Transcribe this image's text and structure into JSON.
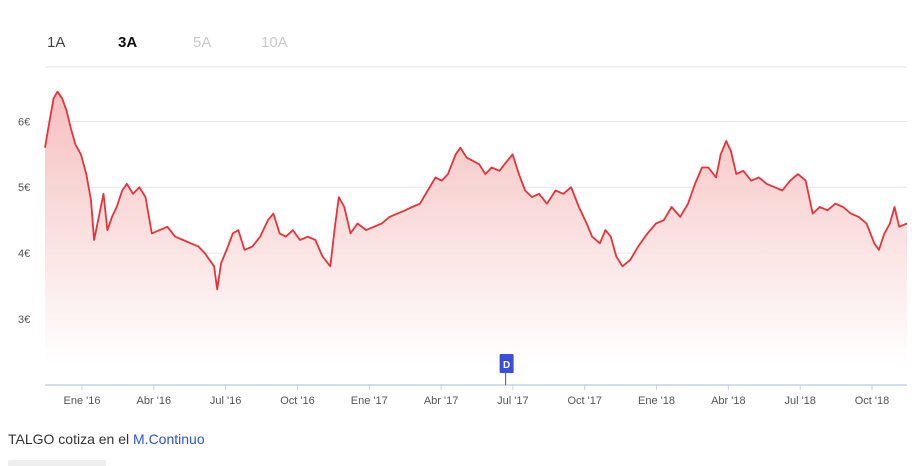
{
  "tabs": [
    {
      "label": "1A",
      "state": "normal"
    },
    {
      "label": "3A",
      "state": "active"
    },
    {
      "label": "5A",
      "state": "disabled"
    },
    {
      "label": "10A",
      "state": "disabled"
    }
  ],
  "footer": {
    "prefix": "TALGO cotiza en el ",
    "market_link": "M.Continuo"
  },
  "colors": {
    "line": "#e8333a",
    "area_top": "#f5b8b8",
    "grid": "#e3e6ee",
    "axis": "#c7d0ea",
    "marker": "#3a4fd9"
  },
  "chart_data": {
    "type": "area",
    "title": "",
    "xlabel": "",
    "ylabel": "",
    "x_ticks": [
      "Ene '16",
      "Abr '16",
      "Jul '16",
      "Oct '16",
      "Ene '17",
      "Abr '17",
      "Jul '17",
      "Oct '17",
      "Ene '18",
      "Abr '18",
      "Jul '18",
      "Oct '18"
    ],
    "y_ticks": [
      "6€",
      "5€",
      "4€",
      "3€"
    ],
    "y_tick_values": [
      6,
      5,
      4,
      3
    ],
    "ylim": [
      2,
      6.9
    ],
    "xlim": [
      "2015-11-20",
      "2018-11-30"
    ],
    "grid": true,
    "event_marker": {
      "label": "D",
      "x": "2017-07-03"
    },
    "series": [
      {
        "points": [
          [
            "2015-11-20",
            5.6
          ],
          [
            "2015-11-25",
            5.95
          ],
          [
            "2015-12-01",
            6.35
          ],
          [
            "2015-12-06",
            6.45
          ],
          [
            "2015-12-12",
            6.35
          ],
          [
            "2015-12-18",
            6.15
          ],
          [
            "2015-12-23",
            5.9
          ],
          [
            "2015-12-29",
            5.65
          ],
          [
            "2016-01-05",
            5.5
          ],
          [
            "2016-01-12",
            5.2
          ],
          [
            "2016-01-18",
            4.8
          ],
          [
            "2016-01-22",
            4.2
          ],
          [
            "2016-01-28",
            4.55
          ],
          [
            "2016-02-03",
            4.9
          ],
          [
            "2016-02-08",
            4.35
          ],
          [
            "2016-02-14",
            4.55
          ],
          [
            "2016-02-20",
            4.7
          ],
          [
            "2016-02-27",
            4.95
          ],
          [
            "2016-03-04",
            5.05
          ],
          [
            "2016-03-12",
            4.9
          ],
          [
            "2016-03-20",
            5.0
          ],
          [
            "2016-03-28",
            4.85
          ],
          [
            "2016-04-05",
            4.3
          ],
          [
            "2016-04-15",
            4.35
          ],
          [
            "2016-04-25",
            4.4
          ],
          [
            "2016-05-05",
            4.25
          ],
          [
            "2016-05-15",
            4.2
          ],
          [
            "2016-05-25",
            4.15
          ],
          [
            "2016-06-04",
            4.1
          ],
          [
            "2016-06-12",
            4.0
          ],
          [
            "2016-06-18",
            3.9
          ],
          [
            "2016-06-24",
            3.8
          ],
          [
            "2016-06-28",
            3.45
          ],
          [
            "2016-07-03",
            3.85
          ],
          [
            "2016-07-10",
            4.05
          ],
          [
            "2016-07-18",
            4.3
          ],
          [
            "2016-07-25",
            4.35
          ],
          [
            "2016-08-02",
            4.05
          ],
          [
            "2016-08-12",
            4.1
          ],
          [
            "2016-08-22",
            4.25
          ],
          [
            "2016-09-01",
            4.5
          ],
          [
            "2016-09-08",
            4.6
          ],
          [
            "2016-09-16",
            4.3
          ],
          [
            "2016-09-24",
            4.25
          ],
          [
            "2016-10-03",
            4.35
          ],
          [
            "2016-10-12",
            4.2
          ],
          [
            "2016-10-22",
            4.25
          ],
          [
            "2016-11-01",
            4.2
          ],
          [
            "2016-11-10",
            3.95
          ],
          [
            "2016-11-20",
            3.8
          ],
          [
            "2016-11-26",
            4.4
          ],
          [
            "2016-12-01",
            4.85
          ],
          [
            "2016-12-08",
            4.7
          ],
          [
            "2016-12-16",
            4.3
          ],
          [
            "2016-12-25",
            4.45
          ],
          [
            "2017-01-05",
            4.35
          ],
          [
            "2017-01-15",
            4.4
          ],
          [
            "2017-01-25",
            4.45
          ],
          [
            "2017-02-04",
            4.55
          ],
          [
            "2017-02-14",
            4.6
          ],
          [
            "2017-02-24",
            4.65
          ],
          [
            "2017-03-05",
            4.7
          ],
          [
            "2017-03-15",
            4.75
          ],
          [
            "2017-03-25",
            4.95
          ],
          [
            "2017-04-04",
            5.15
          ],
          [
            "2017-04-12",
            5.1
          ],
          [
            "2017-04-20",
            5.2
          ],
          [
            "2017-04-30",
            5.5
          ],
          [
            "2017-05-06",
            5.6
          ],
          [
            "2017-05-14",
            5.45
          ],
          [
            "2017-05-22",
            5.4
          ],
          [
            "2017-05-30",
            5.35
          ],
          [
            "2017-06-07",
            5.2
          ],
          [
            "2017-06-15",
            5.3
          ],
          [
            "2017-06-25",
            5.25
          ],
          [
            "2017-07-05",
            5.4
          ],
          [
            "2017-07-12",
            5.5
          ],
          [
            "2017-07-20",
            5.2
          ],
          [
            "2017-07-28",
            4.95
          ],
          [
            "2017-08-06",
            4.85
          ],
          [
            "2017-08-15",
            4.9
          ],
          [
            "2017-08-25",
            4.75
          ],
          [
            "2017-09-05",
            4.95
          ],
          [
            "2017-09-15",
            4.9
          ],
          [
            "2017-09-25",
            5.0
          ],
          [
            "2017-10-05",
            4.7
          ],
          [
            "2017-10-15",
            4.45
          ],
          [
            "2017-10-22",
            4.25
          ],
          [
            "2017-11-01",
            4.15
          ],
          [
            "2017-11-08",
            4.35
          ],
          [
            "2017-11-15",
            4.25
          ],
          [
            "2017-11-22",
            3.95
          ],
          [
            "2017-11-30",
            3.8
          ],
          [
            "2017-12-10",
            3.9
          ],
          [
            "2017-12-20",
            4.1
          ],
          [
            "2018-01-01",
            4.3
          ],
          [
            "2018-01-12",
            4.45
          ],
          [
            "2018-01-22",
            4.5
          ],
          [
            "2018-02-01",
            4.7
          ],
          [
            "2018-02-12",
            4.55
          ],
          [
            "2018-02-22",
            4.75
          ],
          [
            "2018-03-03",
            5.05
          ],
          [
            "2018-03-12",
            5.3
          ],
          [
            "2018-03-20",
            5.3
          ],
          [
            "2018-03-30",
            5.15
          ],
          [
            "2018-04-05",
            5.5
          ],
          [
            "2018-04-12",
            5.7
          ],
          [
            "2018-04-18",
            5.55
          ],
          [
            "2018-04-25",
            5.2
          ],
          [
            "2018-05-04",
            5.25
          ],
          [
            "2018-05-14",
            5.1
          ],
          [
            "2018-05-24",
            5.15
          ],
          [
            "2018-06-03",
            5.05
          ],
          [
            "2018-06-13",
            5.0
          ],
          [
            "2018-06-23",
            4.95
          ],
          [
            "2018-07-03",
            5.1
          ],
          [
            "2018-07-13",
            5.2
          ],
          [
            "2018-07-23",
            5.1
          ],
          [
            "2018-08-01",
            4.6
          ],
          [
            "2018-08-10",
            4.7
          ],
          [
            "2018-08-20",
            4.65
          ],
          [
            "2018-08-30",
            4.75
          ],
          [
            "2018-09-09",
            4.7
          ],
          [
            "2018-09-19",
            4.6
          ],
          [
            "2018-09-29",
            4.55
          ],
          [
            "2018-10-09",
            4.45
          ],
          [
            "2018-10-19",
            4.15
          ],
          [
            "2018-10-25",
            4.05
          ],
          [
            "2018-11-01",
            4.3
          ],
          [
            "2018-11-08",
            4.45
          ],
          [
            "2018-11-14",
            4.7
          ],
          [
            "2018-11-20",
            4.4
          ],
          [
            "2018-11-30",
            4.45
          ]
        ]
      }
    ]
  }
}
